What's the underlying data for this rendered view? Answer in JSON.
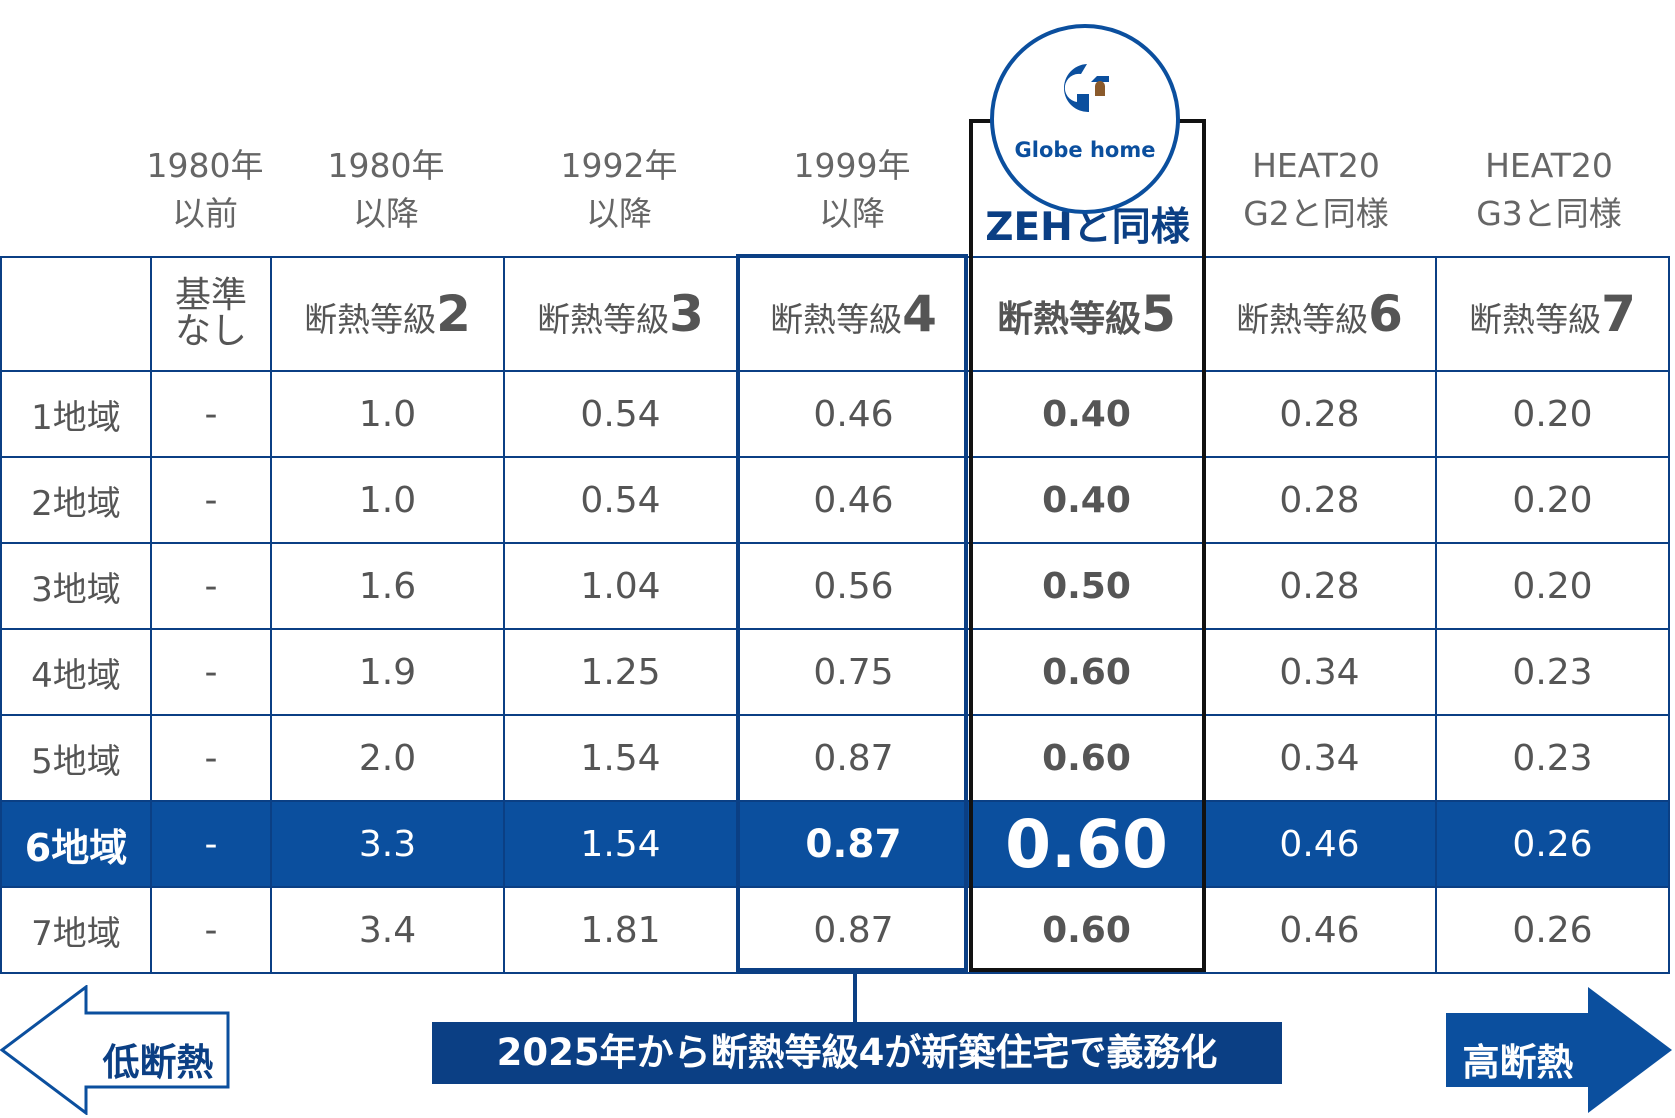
{
  "eras": [
    "1980年\n以前",
    "1980年\n以降",
    "1992年\n以降",
    "1999年\n以降",
    "HEAT20\nG2と同様",
    "HEAT20\nG3と同様"
  ],
  "zeh_label": "ZEHと同様",
  "logo": {
    "brand": "Globe home",
    "mark": "G"
  },
  "grades": {
    "none": "基準\nなし",
    "prefix": "断熱等級",
    "numbers": [
      "2",
      "3",
      "4",
      "5",
      "6",
      "7"
    ]
  },
  "regions": [
    {
      "label": "1地域",
      "values": [
        "-",
        "1.0",
        "0.54",
        "0.46",
        "0.40",
        "0.28",
        "0.20"
      ]
    },
    {
      "label": "2地域",
      "values": [
        "-",
        "1.0",
        "0.54",
        "0.46",
        "0.40",
        "0.28",
        "0.20"
      ]
    },
    {
      "label": "3地域",
      "values": [
        "-",
        "1.6",
        "1.04",
        "0.56",
        "0.50",
        "0.28",
        "0.20"
      ]
    },
    {
      "label": "4地域",
      "values": [
        "-",
        "1.9",
        "1.25",
        "0.75",
        "0.60",
        "0.34",
        "0.23"
      ]
    },
    {
      "label": "5地域",
      "values": [
        "-",
        "2.0",
        "1.54",
        "0.87",
        "0.60",
        "0.34",
        "0.23"
      ]
    },
    {
      "label": "6地域",
      "values": [
        "-",
        "3.3",
        "1.54",
        "0.87",
        "0.60",
        "0.46",
        "0.26"
      ]
    },
    {
      "label": "7地域",
      "values": [
        "-",
        "3.4",
        "1.81",
        "0.87",
        "0.60",
        "0.46",
        "0.26"
      ]
    }
  ],
  "banner": "2025年から断熱等級4が新築住宅で義務化",
  "arrows": {
    "left": "低断熱",
    "right": "高断熱"
  },
  "colors": {
    "primary": "#0b3f84",
    "highlight": "#0b4f9e"
  }
}
